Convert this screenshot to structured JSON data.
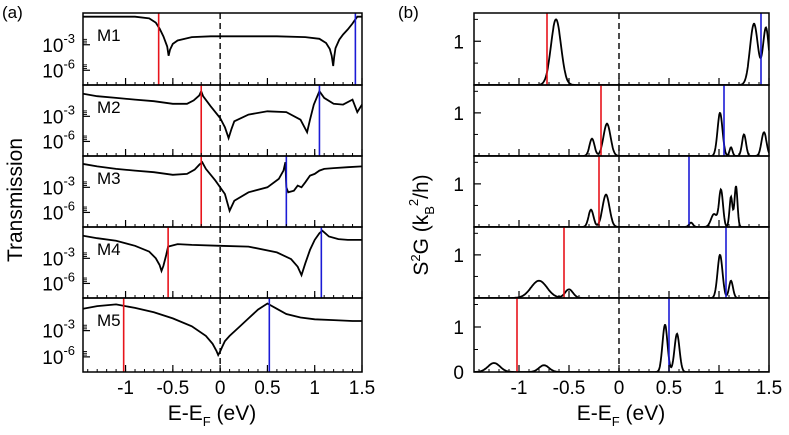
{
  "figure": {
    "panel_a_label": "(a)",
    "panel_b_label": "(b)",
    "colors": {
      "line": "#000000",
      "red_marker": "#e8141b",
      "blue_marker": "#1b1bd6",
      "fermi": "#000000"
    }
  },
  "chart_data": [
    {
      "type": "line",
      "panel": "a",
      "title": "",
      "ylabel": "Transmission",
      "xlabel": {
        "base": "E-E",
        "sub": "F",
        "unit": " (eV)"
      },
      "xlim": [
        -1.45,
        1.5
      ],
      "xticks": [
        -1,
        -0.5,
        0,
        0.5,
        1,
        1.5
      ],
      "xtick_labels": [
        "-1",
        "-0.5",
        "0",
        "0.5",
        "1",
        "1.5"
      ],
      "ylim_log10": [
        -7.5,
        0.5
      ],
      "yticks_log10": [
        -3,
        -6
      ],
      "ytick_labels": [
        {
          "base": "10",
          "exp": "-3"
        },
        {
          "base": "10",
          "exp": "-6"
        }
      ],
      "fermi_line_x": 0,
      "series": [
        {
          "name": "M1",
          "log10T": {
            "x": [
              -1.45,
              -1.2,
              -0.9,
              -0.75,
              -0.68,
              -0.64,
              -0.6,
              -0.56,
              -0.545,
              -0.53,
              -0.5,
              -0.45,
              -0.3,
              -0.1,
              0,
              0.3,
              0.6,
              0.9,
              1.05,
              1.12,
              1.16,
              1.18,
              1.195,
              1.205,
              1.22,
              1.26,
              1.3,
              1.35,
              1.4,
              1.43,
              1.45,
              1.5
            ],
            "y": [
              0.3,
              0.3,
              0.3,
              0.1,
              -0.4,
              -1.1,
              -2.0,
              -3.2,
              -4.3,
              -3.6,
              -2.9,
              -2.5,
              -2.1,
              -2.0,
              -2.0,
              -2.0,
              -2.0,
              -2.1,
              -2.3,
              -2.8,
              -3.5,
              -4.3,
              -5.5,
              -4.5,
              -3.4,
              -2.4,
              -1.8,
              -1.2,
              -0.5,
              0.0,
              0.3,
              0.3
            ]
          },
          "red_marker_x": -0.65,
          "blue_marker_x": 1.43
        },
        {
          "name": "M2",
          "log10T": {
            "x": [
              -1.45,
              -1.3,
              -1.1,
              -0.9,
              -0.7,
              -0.5,
              -0.35,
              -0.28,
              -0.22,
              -0.2,
              -0.18,
              -0.1,
              0,
              0.05,
              0.09,
              0.12,
              0.15,
              0.3,
              0.5,
              0.7,
              0.85,
              0.92,
              0.95,
              0.99,
              1.05,
              1.1,
              1.2,
              1.3,
              1.4,
              1.45,
              1.5
            ],
            "y": [
              -0.3,
              -0.6,
              -0.8,
              -1.0,
              -1.2,
              -1.5,
              -1.5,
              -1.1,
              -0.5,
              0.0,
              -0.6,
              -1.8,
              -3.2,
              -4.3,
              -5.6,
              -4.5,
              -3.6,
              -2.8,
              -2.4,
              -2.5,
              -3.4,
              -4.9,
              -3.4,
              -1.6,
              0.0,
              -0.8,
              -1.5,
              -1.6,
              -1.0,
              -2.5,
              -1.6
            ]
          },
          "red_marker_x": -0.2,
          "blue_marker_x": 1.05
        },
        {
          "name": "M3",
          "log10T": {
            "x": [
              -1.45,
              -1.3,
              -1.1,
              -0.9,
              -0.7,
              -0.5,
              -0.35,
              -0.27,
              -0.22,
              -0.19,
              -0.15,
              -0.05,
              0.05,
              0.1,
              0.15,
              0.3,
              0.5,
              0.62,
              0.67,
              0.69,
              0.7,
              0.72,
              0.78,
              0.82,
              0.86,
              0.9,
              0.95,
              1.0,
              1.05,
              1.1,
              1.2,
              1.35,
              1.5
            ],
            "y": [
              -0.2,
              -0.5,
              -0.8,
              -1.0,
              -1.2,
              -1.5,
              -1.4,
              -0.9,
              -0.3,
              0.0,
              -0.8,
              -2.2,
              -3.8,
              -5.8,
              -4.6,
              -3.6,
              -3.0,
              -2.0,
              -1.0,
              0.0,
              -3.0,
              -3.6,
              -3.4,
              -2.8,
              -3.0,
              -2.4,
              -1.6,
              -1.4,
              -1.0,
              -0.8,
              -0.7,
              -0.6,
              -0.5
            ]
          },
          "red_marker_x": -0.2,
          "blue_marker_x": 0.7
        },
        {
          "name": "M4",
          "log10T": {
            "x": [
              -1.45,
              -1.3,
              -1.1,
              -0.9,
              -0.75,
              -0.68,
              -0.64,
              -0.62,
              -0.6,
              -0.57,
              -0.55,
              -0.45,
              -0.3,
              0,
              0.3,
              0.6,
              0.75,
              0.82,
              0.86,
              0.9,
              0.95,
              1.0,
              1.05,
              1.08,
              1.1,
              1.15,
              1.25,
              1.35,
              1.45,
              1.5
            ],
            "y": [
              -0.3,
              -0.6,
              -0.9,
              -1.5,
              -2.2,
              -3.0,
              -3.8,
              -4.5,
              -3.9,
              -2.6,
              -1.6,
              -1.3,
              -1.4,
              -1.5,
              -1.6,
              -2.3,
              -3.1,
              -4.0,
              -5.0,
              -3.6,
              -2.0,
              -0.8,
              0.0,
              0.3,
              0.1,
              -0.4,
              -0.7,
              -0.8,
              -0.8,
              -0.8
            ]
          },
          "red_marker_x": -0.55,
          "blue_marker_x": 1.07
        },
        {
          "name": "M5",
          "log10T": {
            "x": [
              -1.45,
              -1.3,
              -1.1,
              -0.9,
              -0.7,
              -0.5,
              -0.3,
              -0.15,
              -0.08,
              -0.04,
              -0.02,
              0,
              0.02,
              0.05,
              0.1,
              0.2,
              0.3,
              0.4,
              0.5,
              0.6,
              0.7,
              0.85,
              1.0,
              1.2,
              1.4,
              1.5
            ],
            "y": [
              -0.5,
              -0.2,
              0.0,
              -0.4,
              -0.9,
              -1.6,
              -2.5,
              -3.6,
              -4.5,
              -5.3,
              -5.8,
              -5.4,
              -4.9,
              -4.2,
              -3.6,
              -2.6,
              -1.6,
              -0.6,
              0.1,
              -0.5,
              -1.1,
              -1.5,
              -1.7,
              -1.8,
              -1.9,
              -1.9
            ]
          },
          "red_marker_x": -1.02,
          "blue_marker_x": 0.52
        }
      ]
    },
    {
      "type": "line",
      "panel": "b",
      "title": "",
      "ylabel": {
        "base": "S",
        "sup1": "2",
        "mid": "G (k",
        "sub": "B",
        "sup2": "2",
        "end": "/h)"
      },
      "xlabel": {
        "base": "E-E",
        "sub": "F",
        "unit": " (eV)"
      },
      "xlim": [
        -1.45,
        1.5
      ],
      "xticks": [
        -1,
        -0.5,
        0,
        0.5,
        1,
        1.5
      ],
      "xtick_labels": [
        "-1",
        "-0.5",
        "0",
        "0.5",
        "1",
        "1.5"
      ],
      "ylim": [
        0,
        1.6
      ],
      "yticks": [
        1
      ],
      "ytick_labels": [
        "1"
      ],
      "bottom_yticks": [
        0,
        1
      ],
      "bottom_ytick_labels": [
        "0",
        "1"
      ],
      "fermi_line_x": 0,
      "series": [
        {
          "name": "M1",
          "peaks": [
            {
              "center": -0.63,
              "height": 1.5,
              "width": 0.05
            },
            {
              "center": 1.35,
              "height": 1.4,
              "width": 0.04
            },
            {
              "center": 1.47,
              "height": 1.3,
              "width": 0.03
            }
          ],
          "red_marker_x": -0.72,
          "blue_marker_x": 1.42
        },
        {
          "name": "M2",
          "peaks": [
            {
              "center": -0.27,
              "height": 0.4,
              "width": 0.025
            },
            {
              "center": -0.12,
              "height": 0.75,
              "width": 0.035
            },
            {
              "center": 1.01,
              "height": 1.0,
              "width": 0.025
            },
            {
              "center": 1.12,
              "height": 0.2,
              "width": 0.015
            },
            {
              "center": 1.25,
              "height": 0.5,
              "width": 0.02
            },
            {
              "center": 1.45,
              "height": 0.55,
              "width": 0.025
            }
          ],
          "red_marker_x": -0.18,
          "blue_marker_x": 1.05
        },
        {
          "name": "M3",
          "peaks": [
            {
              "center": -0.28,
              "height": 0.4,
              "width": 0.025
            },
            {
              "center": -0.13,
              "height": 0.75,
              "width": 0.035
            },
            {
              "center": 0.72,
              "height": 0.1,
              "width": 0.02
            },
            {
              "center": 0.95,
              "height": 0.3,
              "width": 0.03
            },
            {
              "center": 1.02,
              "height": 0.85,
              "width": 0.02
            },
            {
              "center": 1.12,
              "height": 0.7,
              "width": 0.015
            },
            {
              "center": 1.17,
              "height": 0.95,
              "width": 0.015
            }
          ],
          "red_marker_x": -0.2,
          "blue_marker_x": 0.7
        },
        {
          "name": "M4",
          "peaks": [
            {
              "center": -0.8,
              "height": 0.4,
              "width": 0.08
            },
            {
              "center": -0.5,
              "height": 0.2,
              "width": 0.04
            },
            {
              "center": 1.01,
              "height": 1.0,
              "width": 0.025
            },
            {
              "center": 1.12,
              "height": 0.4,
              "width": 0.02
            }
          ],
          "red_marker_x": -0.55,
          "blue_marker_x": 1.07
        },
        {
          "name": "M5",
          "peaks": [
            {
              "center": -1.25,
              "height": 0.2,
              "width": 0.06
            },
            {
              "center": -0.75,
              "height": 0.15,
              "width": 0.05
            },
            {
              "center": 0.46,
              "height": 1.05,
              "width": 0.025
            },
            {
              "center": 0.58,
              "height": 0.85,
              "width": 0.025
            }
          ],
          "red_marker_x": -1.02,
          "blue_marker_x": 0.5
        }
      ]
    }
  ]
}
